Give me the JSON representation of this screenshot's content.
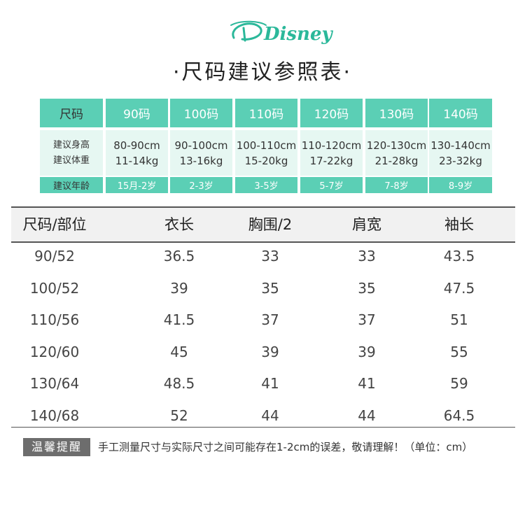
{
  "brand": "Disney",
  "title": "·尺码建议参照表·",
  "guide": {
    "header_first": "尺码",
    "sizes": [
      "90码",
      "100码",
      "110码",
      "120码",
      "130码",
      "140码"
    ],
    "row_label_height": "建议身高",
    "row_label_weight": "建议体重",
    "heights": [
      "80-90cm",
      "90-100cm",
      "100-110cm",
      "110-120cm",
      "120-130cm",
      "130-140cm"
    ],
    "weights": [
      "11-14kg",
      "13-16kg",
      "15-20kg",
      "17-22kg",
      "21-28kg",
      "23-32kg"
    ],
    "row_label_age": "建议年龄",
    "ages": [
      "15月-2岁",
      "2-3岁",
      "3-5岁",
      "5-7岁",
      "7-8岁",
      "8-9岁"
    ]
  },
  "measure": {
    "headers": [
      "尺码/部位",
      "衣长",
      "胸围/2",
      "肩宽",
      "袖长"
    ],
    "rows": [
      [
        "90/52",
        "36.5",
        "33",
        "33",
        "43.5"
      ],
      [
        "100/52",
        "39",
        "35",
        "35",
        "47.5"
      ],
      [
        "110/56",
        "41.5",
        "37",
        "37",
        "51"
      ],
      [
        "120/60",
        "45",
        "39",
        "39",
        "55"
      ],
      [
        "130/64",
        "48.5",
        "41",
        "41",
        "59"
      ],
      [
        "140/68",
        "52",
        "44",
        "44",
        "64.5"
      ]
    ]
  },
  "note": {
    "badge": "温馨提醒",
    "text": "手工测量尺寸与实际尺寸之间可能存在1-2cm的误差，敬请理解！（单位：cm）"
  },
  "colors": {
    "accent": "#5bcfb5",
    "light": "#e6f7f2",
    "logo": "#2bb89a"
  }
}
